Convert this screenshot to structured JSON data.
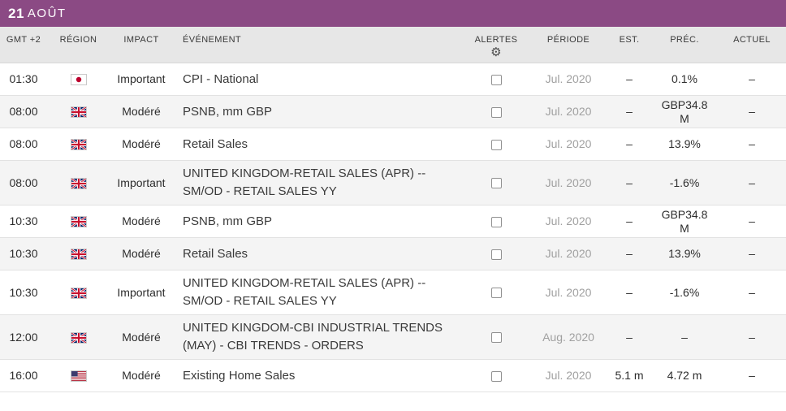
{
  "colors": {
    "accent": "#8b4a84",
    "row_stripe": "#f4f4f4",
    "header_bg": "#e7e7e7"
  },
  "header": {
    "day": "21",
    "month": "AOÛT"
  },
  "icons": {
    "gear": "⚙"
  },
  "table": {
    "columns": [
      "GMT +2",
      "RÉGION",
      "IMPACT",
      "ÉVÉNEMENT",
      "ALERTES",
      "PÉRIODE",
      "EST.",
      "PRÉC.",
      "ACTUEL"
    ],
    "rows": [
      {
        "time": "01:30",
        "region": "jp",
        "region_name": "Japan",
        "impact": "Important",
        "event": "CPI - National",
        "period": "Jul. 2020",
        "est": "–",
        "prev": "0.1%",
        "actual": "–"
      },
      {
        "time": "08:00",
        "region": "gb",
        "region_name": "United Kingdom",
        "impact": "Modéré",
        "event": "PSNB, mm GBP",
        "period": "Jul. 2020",
        "est": "–",
        "prev": "GBP34.8 M",
        "actual": "–"
      },
      {
        "time": "08:00",
        "region": "gb",
        "region_name": "United Kingdom",
        "impact": "Modéré",
        "event": "Retail Sales",
        "period": "Jul. 2020",
        "est": "–",
        "prev": "13.9%",
        "actual": "–"
      },
      {
        "time": "08:00",
        "region": "gb",
        "region_name": "United Kingdom",
        "impact": "Important",
        "event": "UNITED KINGDOM-RETAIL SALES (APR) -- SM/OD - RETAIL SALES YY",
        "period": "Jul. 2020",
        "est": "–",
        "prev": "-1.6%",
        "actual": "–"
      },
      {
        "time": "10:30",
        "region": "gb",
        "region_name": "United Kingdom",
        "impact": "Modéré",
        "event": "PSNB, mm GBP",
        "period": "Jul. 2020",
        "est": "–",
        "prev": "GBP34.8 M",
        "actual": "–"
      },
      {
        "time": "10:30",
        "region": "gb",
        "region_name": "United Kingdom",
        "impact": "Modéré",
        "event": "Retail Sales",
        "period": "Jul. 2020",
        "est": "–",
        "prev": "13.9%",
        "actual": "–"
      },
      {
        "time": "10:30",
        "region": "gb",
        "region_name": "United Kingdom",
        "impact": "Important",
        "event": "UNITED KINGDOM-RETAIL SALES (APR) -- SM/OD - RETAIL SALES YY",
        "period": "Jul. 2020",
        "est": "–",
        "prev": "-1.6%",
        "actual": "–"
      },
      {
        "time": "12:00",
        "region": "gb",
        "region_name": "United Kingdom",
        "impact": "Modéré",
        "event": "UNITED KINGDOM-CBI INDUSTRIAL TRENDS (MAY) - CBI TRENDS - ORDERS",
        "period": "Aug. 2020",
        "est": "–",
        "prev": "–",
        "actual": "–"
      },
      {
        "time": "16:00",
        "region": "us",
        "region_name": "United States",
        "impact": "Modéré",
        "event": "Existing Home Sales",
        "period": "Jul. 2020",
        "est": "5.1 m",
        "prev": "4.72 m",
        "actual": "–"
      }
    ]
  }
}
